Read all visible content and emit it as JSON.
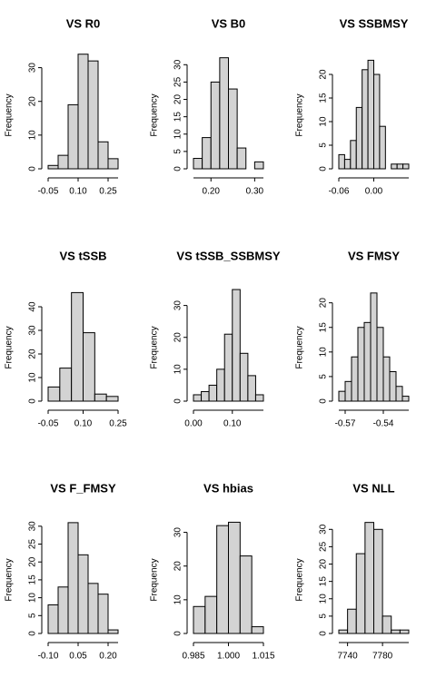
{
  "chart_data": [
    {
      "type": "histogram",
      "title": "VS R0",
      "ylabel": "Frequency",
      "color": "#d3d3d3",
      "bins": [
        -0.05,
        0,
        0.05,
        0.1,
        0.15,
        0.2,
        0.25,
        0.3
      ],
      "values": [
        1,
        4,
        19,
        34,
        32,
        8,
        3
      ],
      "xlim": [
        -0.05,
        0.3
      ],
      "xticks": [
        {
          "value": -0.05,
          "label": "-0.05"
        },
        {
          "value": 0.1,
          "label": "0.10"
        },
        0.25
      ],
      "ylim": [
        0,
        35
      ],
      "yticks": [
        0,
        10,
        20,
        30
      ]
    },
    {
      "type": "histogram",
      "title": "VS B0",
      "ylabel": "Frequency",
      "color": "#d3d3d3",
      "bins": [
        0.16,
        0.18,
        0.2,
        0.22,
        0.24,
        0.26,
        0.28,
        0.3,
        0.32
      ],
      "values": [
        3,
        9,
        25,
        32,
        23,
        6,
        0,
        2
      ],
      "xlim": [
        0.16,
        0.32
      ],
      "xticks": [
        {
          "value": 0.2,
          "label": "0.20"
        },
        {
          "value": 0.3,
          "label": "0.30"
        }
      ],
      "ylim": [
        0,
        34
      ],
      "yticks": [
        0,
        5,
        10,
        15,
        20,
        25,
        30
      ]
    },
    {
      "type": "histogram",
      "title": "VS SSBMSY",
      "ylabel": "Frequency",
      "color": "#d3d3d3",
      "bins": [
        -0.06,
        -0.05,
        -0.04,
        -0.03,
        -0.02,
        -0.01,
        0,
        0.01,
        0.02,
        0.03,
        0.04,
        0.05,
        0.06
      ],
      "values": [
        3,
        2,
        6,
        13,
        21,
        23,
        20,
        9,
        0,
        1,
        1,
        1
      ],
      "xlim": [
        -0.06,
        0.06
      ],
      "xticks": [
        -0.06,
        {
          "value": 0,
          "label": "0.00"
        }
      ],
      "ylim": [
        0,
        25
      ],
      "yticks": [
        0,
        5,
        10,
        15,
        20
      ]
    },
    {
      "type": "histogram",
      "title": "VS tSSB",
      "ylabel": "Frequency",
      "color": "#d3d3d3",
      "bins": [
        -0.05,
        0,
        0.05,
        0.1,
        0.15,
        0.2,
        0.25
      ],
      "values": [
        6,
        14,
        46,
        29,
        3,
        2
      ],
      "xlim": [
        -0.05,
        0.25
      ],
      "xticks": [
        {
          "value": -0.05,
          "label": "-0.05"
        },
        {
          "value": 0.1,
          "label": "0.10"
        },
        0.25
      ],
      "ylim": [
        0,
        50
      ],
      "yticks": [
        0,
        10,
        20,
        30,
        40
      ]
    },
    {
      "type": "histogram",
      "title": "VS tSSB_SSBMSY",
      "ylabel": "Frequency",
      "color": "#d3d3d3",
      "bins": [
        0,
        0.02,
        0.04,
        0.06,
        0.08,
        0.1,
        0.12,
        0.14,
        0.16,
        0.18
      ],
      "values": [
        2,
        3,
        5,
        10,
        21,
        35,
        15,
        8,
        2
      ],
      "xlim": [
        0,
        0.18
      ],
      "xticks": [
        {
          "value": 0,
          "label": "0.00"
        },
        {
          "value": 0.1,
          "label": "0.10"
        }
      ],
      "ylim": [
        0,
        37
      ],
      "yticks": [
        0,
        10,
        20,
        30
      ]
    },
    {
      "type": "histogram",
      "title": "VS FMSY",
      "ylabel": "Frequency",
      "color": "#d3d3d3",
      "bins": [
        -0.575,
        -0.57,
        -0.565,
        -0.56,
        -0.555,
        -0.55,
        -0.545,
        -0.54,
        -0.535,
        -0.53,
        -0.525,
        -0.52
      ],
      "values": [
        2,
        4,
        9,
        15,
        16,
        22,
        15,
        9,
        6,
        3,
        1
      ],
      "xlim": [
        -0.575,
        -0.52
      ],
      "xticks": [
        -0.57,
        -0.54
      ],
      "ylim": [
        0,
        24
      ],
      "yticks": [
        0,
        5,
        10,
        15,
        20
      ]
    },
    {
      "type": "histogram",
      "title": "VS F_FMSY",
      "ylabel": "Frequency",
      "color": "#d3d3d3",
      "bins": [
        -0.1,
        -0.05,
        0,
        0.05,
        0.1,
        0.15,
        0.2,
        0.25
      ],
      "values": [
        8,
        13,
        31,
        22,
        14,
        11,
        1
      ],
      "xlim": [
        -0.1,
        0.25
      ],
      "xticks": [
        {
          "value": -0.1,
          "label": "-0.10"
        },
        0.05,
        {
          "value": 0.2,
          "label": "0.20"
        }
      ],
      "ylim": [
        0,
        33
      ],
      "yticks": [
        0,
        5,
        10,
        15,
        20,
        25,
        30
      ]
    },
    {
      "type": "histogram",
      "title": "VS hbias",
      "ylabel": "Frequency",
      "color": "#d3d3d3",
      "bins": [
        0.985,
        0.99,
        0.995,
        1,
        1.005,
        1.01,
        1.015
      ],
      "values": [
        8,
        11,
        32,
        33,
        23,
        2
      ],
      "xlim": [
        0.985,
        1.015
      ],
      "xticks": [
        0.985,
        {
          "value": 1,
          "label": "1.000"
        },
        1.015
      ],
      "ylim": [
        0,
        35
      ],
      "yticks": [
        0,
        10,
        20,
        30
      ]
    },
    {
      "type": "histogram",
      "title": "VS NLL",
      "ylabel": "Frequency",
      "color": "#d3d3d3",
      "bins": [
        7730,
        7740,
        7750,
        7760,
        7770,
        7780,
        7790,
        7800,
        7810
      ],
      "values": [
        1,
        7,
        23,
        32,
        30,
        5,
        1,
        1
      ],
      "xlim": [
        7730,
        7810
      ],
      "xticks": [
        7740,
        7780
      ],
      "ylim": [
        0,
        34
      ],
      "yticks": [
        0,
        5,
        10,
        15,
        20,
        25,
        30
      ]
    }
  ]
}
